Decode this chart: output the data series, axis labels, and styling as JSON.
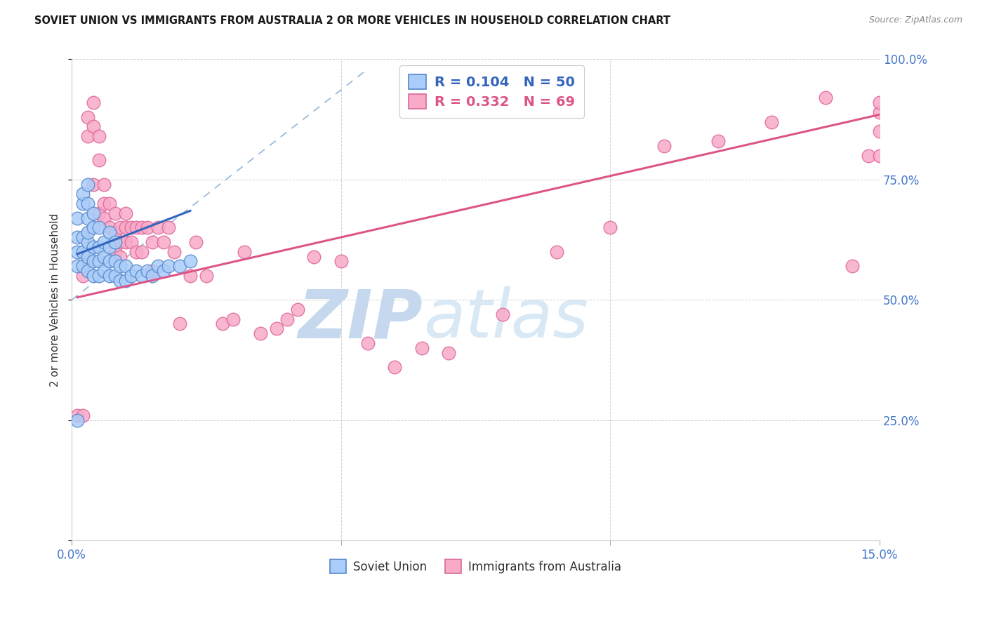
{
  "title": "SOVIET UNION VS IMMIGRANTS FROM AUSTRALIA 2 OR MORE VEHICLES IN HOUSEHOLD CORRELATION CHART",
  "source": "Source: ZipAtlas.com",
  "ylabel": "2 or more Vehicles in Household",
  "xmin": 0.0,
  "xmax": 0.15,
  "ymin": 0.0,
  "ymax": 1.0,
  "y_ticks": [
    0.0,
    0.25,
    0.5,
    0.75,
    1.0
  ],
  "y_tick_labels_right": [
    "",
    "25.0%",
    "50.0%",
    "75.0%",
    "100.0%"
  ],
  "x_ticks": [
    0.0,
    0.05,
    0.1,
    0.15
  ],
  "x_tick_labels": [
    "0.0%",
    "",
    "",
    "15.0%"
  ],
  "legend1_label": "R = 0.104   N = 50",
  "legend2_label": "R = 0.332   N = 69",
  "legend_bottom_label1": "Soviet Union",
  "legend_bottom_label2": "Immigrants from Australia",
  "soviet_color": "#aaccf8",
  "australia_color": "#f8aac8",
  "soviet_edge_color": "#5588cc",
  "australia_edge_color": "#dd6699",
  "blue_line_color": "#3366bb",
  "pink_line_color": "#dd5588",
  "dashed_line_color": "#99bbdd",
  "watermark_text": "ZIPatlas",
  "watermark_color": "#d8e8f5",
  "soviet_x": [
    0.001,
    0.001,
    0.001,
    0.001,
    0.001,
    0.002,
    0.002,
    0.002,
    0.002,
    0.002,
    0.003,
    0.003,
    0.003,
    0.003,
    0.003,
    0.003,
    0.003,
    0.004,
    0.004,
    0.004,
    0.004,
    0.004,
    0.005,
    0.005,
    0.005,
    0.005,
    0.006,
    0.006,
    0.006,
    0.007,
    0.007,
    0.007,
    0.007,
    0.008,
    0.008,
    0.008,
    0.009,
    0.009,
    0.01,
    0.01,
    0.011,
    0.012,
    0.013,
    0.014,
    0.015,
    0.016,
    0.017,
    0.018,
    0.02,
    0.022
  ],
  "soviet_y": [
    0.25,
    0.57,
    0.6,
    0.63,
    0.67,
    0.57,
    0.6,
    0.63,
    0.7,
    0.72,
    0.56,
    0.59,
    0.62,
    0.64,
    0.67,
    0.7,
    0.74,
    0.55,
    0.58,
    0.61,
    0.65,
    0.68,
    0.55,
    0.58,
    0.61,
    0.65,
    0.56,
    0.59,
    0.62,
    0.55,
    0.58,
    0.61,
    0.64,
    0.55,
    0.58,
    0.62,
    0.54,
    0.57,
    0.54,
    0.57,
    0.55,
    0.56,
    0.55,
    0.56,
    0.55,
    0.57,
    0.56,
    0.57,
    0.57,
    0.58
  ],
  "australia_x": [
    0.001,
    0.002,
    0.002,
    0.003,
    0.003,
    0.003,
    0.004,
    0.004,
    0.004,
    0.005,
    0.005,
    0.005,
    0.006,
    0.006,
    0.006,
    0.007,
    0.007,
    0.008,
    0.008,
    0.008,
    0.009,
    0.009,
    0.009,
    0.01,
    0.01,
    0.01,
    0.011,
    0.011,
    0.012,
    0.012,
    0.013,
    0.013,
    0.014,
    0.015,
    0.015,
    0.016,
    0.017,
    0.018,
    0.019,
    0.02,
    0.022,
    0.023,
    0.025,
    0.028,
    0.03,
    0.032,
    0.035,
    0.038,
    0.04,
    0.042,
    0.045,
    0.05,
    0.055,
    0.06,
    0.065,
    0.07,
    0.08,
    0.09,
    0.1,
    0.11,
    0.12,
    0.13,
    0.14,
    0.145,
    0.148,
    0.15,
    0.15,
    0.15,
    0.15
  ],
  "australia_y": [
    0.26,
    0.55,
    0.26,
    0.88,
    0.84,
    0.58,
    0.91,
    0.86,
    0.74,
    0.84,
    0.79,
    0.68,
    0.74,
    0.7,
    0.67,
    0.7,
    0.65,
    0.68,
    0.64,
    0.6,
    0.65,
    0.62,
    0.59,
    0.68,
    0.65,
    0.62,
    0.65,
    0.62,
    0.65,
    0.6,
    0.65,
    0.6,
    0.65,
    0.62,
    0.56,
    0.65,
    0.62,
    0.65,
    0.6,
    0.45,
    0.55,
    0.62,
    0.55,
    0.45,
    0.46,
    0.6,
    0.43,
    0.44,
    0.46,
    0.48,
    0.59,
    0.58,
    0.41,
    0.36,
    0.4,
    0.39,
    0.47,
    0.6,
    0.65,
    0.82,
    0.83,
    0.87,
    0.92,
    0.57,
    0.8,
    0.8,
    0.85,
    0.89,
    0.91
  ],
  "blue_line_x": [
    0.001,
    0.022
  ],
  "blue_line_y": [
    0.595,
    0.685
  ],
  "pink_line_x": [
    0.001,
    0.15
  ],
  "pink_line_y": [
    0.505,
    0.885
  ],
  "dash_line_x": [
    0.0,
    0.055
  ],
  "dash_line_y": [
    0.5,
    0.98
  ]
}
